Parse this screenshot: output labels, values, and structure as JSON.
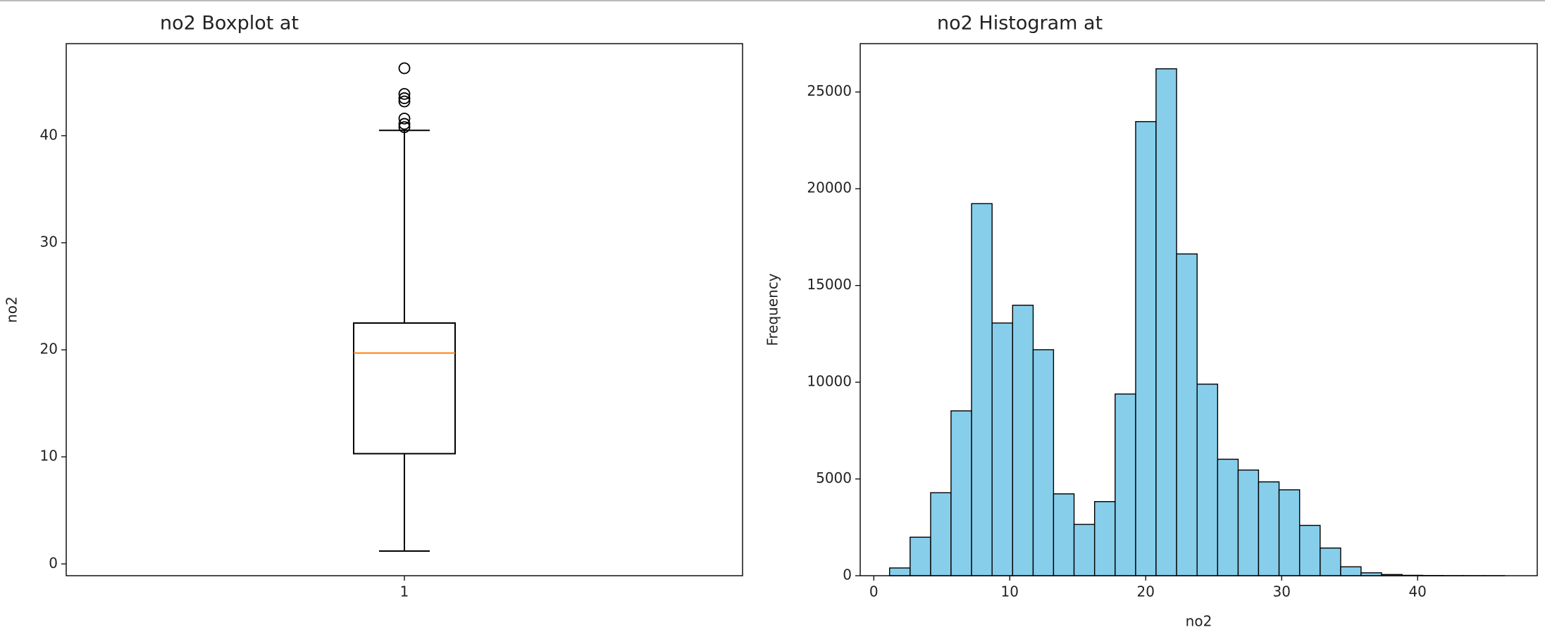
{
  "chart_data": [
    {
      "type": "box",
      "title": "no2 Boxplot at",
      "y_label": "no2",
      "categories": [
        "1"
      ],
      "xlim": [
        0.5,
        1.5
      ],
      "boxes": [
        {
          "low": 1.2,
          "q1": 10.3,
          "median": 19.7,
          "q3": 22.5,
          "high": 40.5,
          "outliers": [
            40.8,
            41.1,
            41.6,
            43.2,
            43.5,
            43.9,
            46.3
          ]
        }
      ],
      "color": "#000000",
      "median_color": "#ff7f0e",
      "ylim": [
        -1.1,
        48.6
      ],
      "yticks": [
        0,
        10,
        20,
        30,
        40
      ]
    },
    {
      "type": "histogram",
      "title": "no2 Histogram at",
      "x_label": "no2",
      "y_label": "Frequency",
      "bins": [
        1.16,
        2.67,
        4.18,
        5.68,
        7.19,
        8.7,
        10.21,
        11.72,
        13.22,
        14.73,
        16.24,
        17.75,
        19.26,
        20.76,
        22.27,
        23.78,
        25.29,
        26.8,
        28.3,
        29.81,
        31.32,
        32.83,
        34.34,
        35.84,
        37.35,
        38.86,
        40.37,
        41.88,
        43.38,
        44.89,
        46.4
      ],
      "values": [
        400,
        1990,
        4290,
        8520,
        19230,
        13060,
        13980,
        11680,
        4230,
        2650,
        3830,
        9390,
        23470,
        26200,
        16630,
        9900,
        6020,
        5460,
        4850,
        4440,
        2600,
        1430,
        460,
        150,
        60,
        20,
        10,
        5,
        3,
        2
      ],
      "color": "#87ceeb",
      "edge_color": "#000000",
      "xlim": [
        -1.0,
        48.8
      ],
      "xticks": [
        0,
        10,
        20,
        30,
        40
      ],
      "ylim": [
        0,
        27500
      ],
      "yticks": [
        0,
        5000,
        10000,
        15000,
        20000,
        25000
      ]
    }
  ]
}
